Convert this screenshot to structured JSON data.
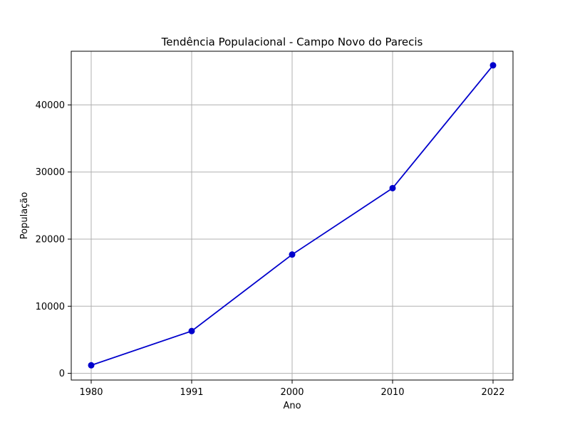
{
  "chart_data": {
    "type": "line",
    "title": "Tendência Populacional - Campo Novo do Parecis",
    "xlabel": "Ano",
    "ylabel": "População",
    "categories": [
      "1980",
      "1991",
      "2000",
      "2010",
      "2022"
    ],
    "series": [
      {
        "values": [
          1200,
          6300,
          17700,
          27600,
          45900
        ],
        "color": "#0000cc"
      }
    ],
    "ylim": [
      -1000,
      48000
    ],
    "yticks": [
      0,
      10000,
      20000,
      30000,
      40000
    ],
    "grid": true,
    "marker": "circle"
  }
}
